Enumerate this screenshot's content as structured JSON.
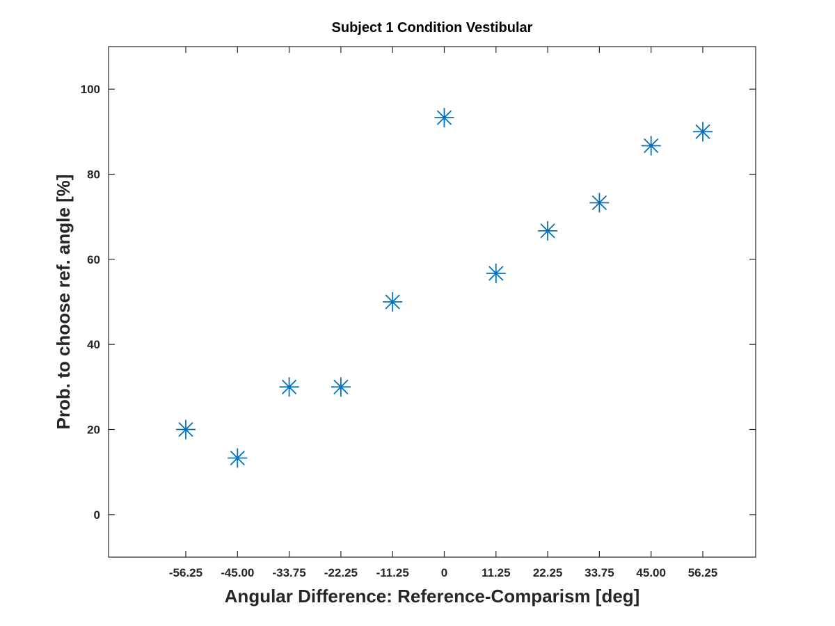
{
  "chart_data": {
    "type": "scatter",
    "title": "Subject 1 Condition Vestibular",
    "xlabel": "Angular Difference: Reference-Comparism [deg]",
    "ylabel": "Prob. to choose ref. angle [%]",
    "x_ticks": [
      "-56.25",
      "-45.00",
      "-33.75",
      "-22.25",
      "-11.25",
      "0",
      "11.25",
      "22.25",
      "33.75",
      "45.00",
      "56.25"
    ],
    "y_ticks": [
      0,
      20,
      40,
      60,
      80,
      100
    ],
    "ylim": [
      -10,
      110
    ],
    "grid": false,
    "marker": "asterisk",
    "marker_color": "#0072BD",
    "series": [
      {
        "x": [
          "-56.25",
          "-45.00",
          "-33.75",
          "-22.25",
          "-11.25",
          "0",
          "11.25",
          "22.25",
          "33.75",
          "45.00",
          "56.25"
        ],
        "y": [
          20,
          13.3,
          30,
          30,
          50,
          93.3,
          56.7,
          66.7,
          73.3,
          86.7,
          90
        ]
      }
    ]
  }
}
